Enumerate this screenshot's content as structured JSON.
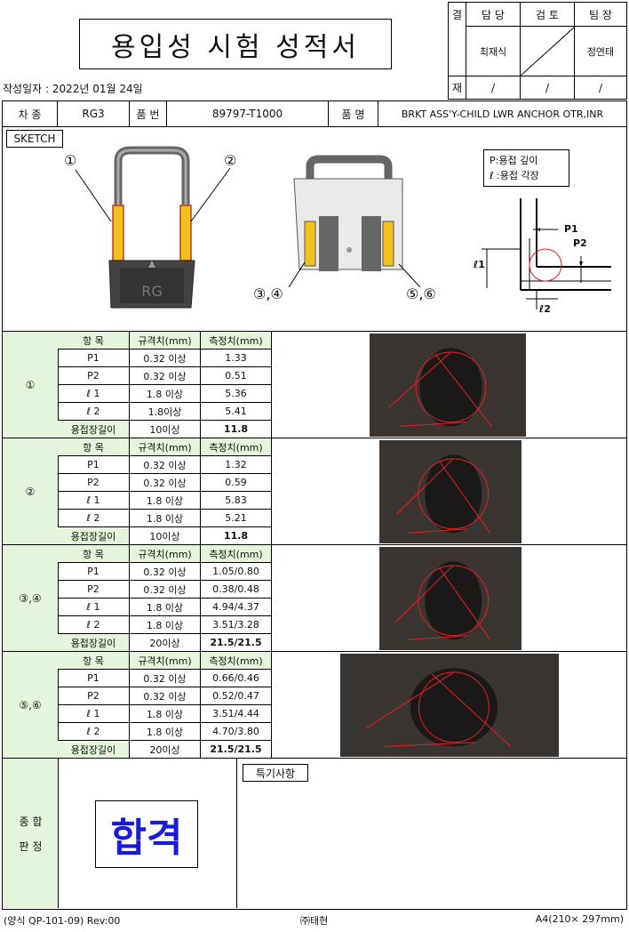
{
  "title": "용입성 시험 성적서",
  "created_date": "작성일자 : 2022년 01월 24일",
  "approval": {
    "row_label_top": "결",
    "row_label_bottom": "재",
    "headers": [
      "담 당",
      "검 토",
      "팀 장"
    ],
    "signatures": [
      "최재식",
      "",
      "정연태"
    ],
    "dates": [
      "/",
      "/",
      "/"
    ]
  },
  "info": {
    "car_label": "차 종",
    "car_value": "RG3",
    "part_no_label": "품 번",
    "part_no_value": "89797-T1000",
    "part_name_label": "품 명",
    "part_name_value": "BRKT ASS'Y-CHILD LWR ANCHOR OTR,INR"
  },
  "sketch": {
    "label": "SKETCH",
    "legend_p": "P:용접 깊이",
    "legend_l": "ℓ :용접 각장",
    "markers": [
      "①",
      "②",
      "③,④",
      "⑤,⑥"
    ],
    "diagram_labels": {
      "p1": "P1",
      "p2": "P2",
      "l1": "ℓ1",
      "l2": "ℓ2"
    }
  },
  "table_headers": {
    "item": "항  목",
    "spec": "규격치(mm)",
    "measured": "측정치(mm)"
  },
  "groups": [
    {
      "id": "①",
      "rows": [
        {
          "item": "P1",
          "spec": "0.32 이상",
          "value": "1.33"
        },
        {
          "item": "P2",
          "spec": "0.32 이상",
          "value": "0.51"
        },
        {
          "item": "ℓ 1",
          "spec": "1.8 이상",
          "value": "5.36"
        },
        {
          "item": "ℓ 2",
          "spec": "1.8이상",
          "value": "5.41"
        },
        {
          "item": "용접장길이",
          "spec": "10이상",
          "value": "11.8"
        }
      ]
    },
    {
      "id": "②",
      "rows": [
        {
          "item": "P1",
          "spec": "0.32 이상",
          "value": "1.32"
        },
        {
          "item": "P2",
          "spec": "0.32 이상",
          "value": "0.59"
        },
        {
          "item": "ℓ 1",
          "spec": "1.8 이상",
          "value": "5.83"
        },
        {
          "item": "ℓ 2",
          "spec": "1.8 이상",
          "value": "5.21"
        },
        {
          "item": "용접장길이",
          "spec": "10이상",
          "value": "11.8"
        }
      ]
    },
    {
      "id": "③,④",
      "rows": [
        {
          "item": "P1",
          "spec": "0.32 이상",
          "value": "1.05/0.80"
        },
        {
          "item": "P2",
          "spec": "0.32 이상",
          "value": "0.38/0.48"
        },
        {
          "item": "ℓ 1",
          "spec": "1.8 이상",
          "value": "4.94/4.37"
        },
        {
          "item": "ℓ 2",
          "spec": "1.8 이상",
          "value": "3.51/3.28"
        },
        {
          "item": "용접장길이",
          "spec": "20이상",
          "value": "21.5/21.5"
        }
      ]
    },
    {
      "id": "⑤,⑥",
      "rows": [
        {
          "item": "P1",
          "spec": "0.32 이상",
          "value": "0.66/0.46"
        },
        {
          "item": "P2",
          "spec": "0.32 이상",
          "value": "0.52/0.47"
        },
        {
          "item": "ℓ 1",
          "spec": "1.8 이상",
          "value": "3.51/4.44"
        },
        {
          "item": "ℓ 2",
          "spec": "1.8 이상",
          "value": "4.70/3.80"
        },
        {
          "item": "용접장길이",
          "spec": "20이상",
          "value": "21.5/21.5"
        }
      ]
    }
  ],
  "verdict": {
    "label_top": "종 합",
    "label_bottom": "판 정",
    "result": "합격",
    "result_color": "#1a1adb",
    "remarks_label": "특기사항"
  },
  "footer": {
    "left": "(양식 QP-101-09) Rev:00",
    "center": "㈜태현",
    "right": "A4(210× 297mm)"
  },
  "colors": {
    "header_green": "#e4f5dc",
    "weld_red": "#e02020",
    "weld_yellow": "#f3c21a"
  }
}
